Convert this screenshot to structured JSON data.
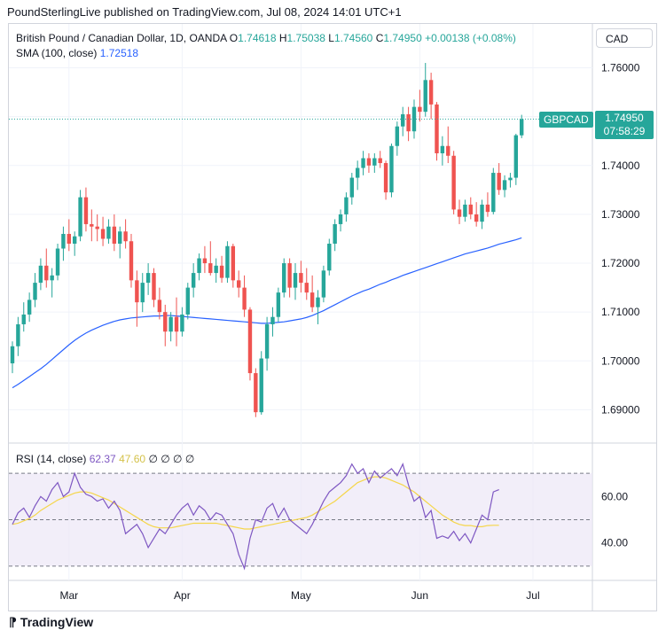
{
  "publisher_line": "PoundSterlingLive published on TradingView.com, Jul 08, 2024 14:01 UTC+1",
  "legend": {
    "symbol": "British Pound / Canadian Dollar, 1D, OANDA",
    "open_label": "O",
    "open": "1.74618",
    "high_label": "H",
    "high": "1.75038",
    "low_label": "L",
    "low": "1.74560",
    "close_label": "C",
    "close": "1.74950",
    "change": "+0.00138 (+0.08%)"
  },
  "sma_legend": {
    "label": "SMA (100, close)",
    "value": "1.72518"
  },
  "rsi_legend": {
    "label": "RSI (14, close)",
    "value": "62.37",
    "ma_value": "47.60",
    "extras": "∅ ∅ ∅ ∅"
  },
  "currency_button": "CAD",
  "symbol_tag": "GBPCAD",
  "last_price": "1.74950",
  "countdown": "07:58:29",
  "brand": "TradingView",
  "colors": {
    "up": "#26a69a",
    "down": "#ef5350",
    "sma": "#2962ff",
    "rsi": "#7e57c2",
    "rsi_ma": "#f5d64a",
    "rsi_band": "#ede7f6"
  },
  "chart_data": [
    {
      "type": "candlestick",
      "title": "British Pound / Canadian Dollar, 1D, OANDA",
      "ylim": [
        1.685,
        1.763
      ],
      "yticks": [
        "1.76000",
        "1.75000",
        "1.74000",
        "1.73000",
        "1.72000",
        "1.71000",
        "1.70000",
        "1.69000"
      ],
      "ytick_values": [
        1.76,
        1.75,
        1.74,
        1.73,
        1.72,
        1.71,
        1.7,
        1.69
      ],
      "xticks": [
        "Mar",
        "Apr",
        "May",
        "Jun",
        "Jul"
      ],
      "xtick_index": [
        10,
        30,
        51,
        72,
        92
      ],
      "grid": true,
      "series": [
        {
          "name": "GBPCAD",
          "ohlc": [
            [
              1.6995,
              1.704,
              1.6975,
              1.703
            ],
            [
              1.703,
              1.709,
              1.701,
              1.7075
            ],
            [
              1.7075,
              1.712,
              1.706,
              1.7095
            ],
            [
              1.7095,
              1.714,
              1.708,
              1.7125
            ],
            [
              1.7125,
              1.718,
              1.711,
              1.716
            ],
            [
              1.716,
              1.721,
              1.7145,
              1.7195
            ],
            [
              1.7195,
              1.723,
              1.715,
              1.7165
            ],
            [
              1.7165,
              1.719,
              1.713,
              1.7175
            ],
            [
              1.7175,
              1.724,
              1.7165,
              1.723
            ],
            [
              1.723,
              1.7275,
              1.7205,
              1.726
            ],
            [
              1.726,
              1.729,
              1.7225,
              1.724
            ],
            [
              1.724,
              1.7265,
              1.7215,
              1.7255
            ],
            [
              1.7255,
              1.735,
              1.7245,
              1.7335
            ],
            [
              1.7335,
              1.7355,
              1.7265,
              1.728
            ],
            [
              1.728,
              1.731,
              1.7245,
              1.7275
            ],
            [
              1.7275,
              1.73,
              1.7245,
              1.727
            ],
            [
              1.727,
              1.7295,
              1.7235,
              1.725
            ],
            [
              1.725,
              1.729,
              1.724,
              1.7275
            ],
            [
              1.7275,
              1.73,
              1.7225,
              1.724
            ],
            [
              1.724,
              1.7275,
              1.721,
              1.7265
            ],
            [
              1.7265,
              1.729,
              1.723,
              1.7245
            ],
            [
              1.7245,
              1.726,
              1.715,
              1.7165
            ],
            [
              1.7165,
              1.7185,
              1.707,
              1.712
            ],
            [
              1.712,
              1.718,
              1.71,
              1.716
            ],
            [
              1.716,
              1.72,
              1.7135,
              1.718
            ],
            [
              1.718,
              1.719,
              1.711,
              1.7125
            ],
            [
              1.7125,
              1.715,
              1.7085,
              1.71
            ],
            [
              1.71,
              1.7115,
              1.703,
              1.706
            ],
            [
              1.706,
              1.71,
              1.704,
              1.709
            ],
            [
              1.709,
              1.713,
              1.703,
              1.706
            ],
            [
              1.706,
              1.711,
              1.705,
              1.7095
            ],
            [
              1.7095,
              1.716,
              1.7085,
              1.715
            ],
            [
              1.715,
              1.72,
              1.713,
              1.718
            ],
            [
              1.718,
              1.722,
              1.7165,
              1.721
            ],
            [
              1.721,
              1.7235,
              1.718,
              1.72
            ],
            [
              1.72,
              1.7245,
              1.7175,
              1.718
            ],
            [
              1.718,
              1.721,
              1.716,
              1.7195
            ],
            [
              1.7195,
              1.7215,
              1.716,
              1.717
            ],
            [
              1.717,
              1.7245,
              1.716,
              1.7235
            ],
            [
              1.7235,
              1.724,
              1.715,
              1.7165
            ],
            [
              1.7165,
              1.7185,
              1.713,
              1.715
            ],
            [
              1.715,
              1.7175,
              1.709,
              1.7105
            ],
            [
              1.7105,
              1.711,
              1.696,
              1.6975
            ],
            [
              1.6975,
              1.6985,
              1.6885,
              1.6895
            ],
            [
              1.6895,
              1.702,
              1.689,
              1.7005
            ],
            [
              1.7005,
              1.709,
              1.698,
              1.7075
            ],
            [
              1.7075,
              1.711,
              1.705,
              1.709
            ],
            [
              1.709,
              1.715,
              1.708,
              1.714
            ],
            [
              1.714,
              1.721,
              1.713,
              1.72
            ],
            [
              1.72,
              1.721,
              1.713,
              1.715
            ],
            [
              1.715,
              1.72,
              1.7125,
              1.718
            ],
            [
              1.718,
              1.7205,
              1.714,
              1.716
            ],
            [
              1.716,
              1.719,
              1.7125,
              1.714
            ],
            [
              1.714,
              1.7175,
              1.71,
              1.711
            ],
            [
              1.711,
              1.7145,
              1.7075,
              1.713
            ],
            [
              1.713,
              1.7195,
              1.712,
              1.7185
            ],
            [
              1.7185,
              1.725,
              1.7175,
              1.724
            ],
            [
              1.724,
              1.729,
              1.7225,
              1.728
            ],
            [
              1.728,
              1.731,
              1.7265,
              1.73
            ],
            [
              1.73,
              1.7345,
              1.7285,
              1.7335
            ],
            [
              1.7335,
              1.7385,
              1.732,
              1.7375
            ],
            [
              1.7375,
              1.741,
              1.735,
              1.7395
            ],
            [
              1.7395,
              1.743,
              1.738,
              1.7415
            ],
            [
              1.7415,
              1.7425,
              1.7385,
              1.74
            ],
            [
              1.74,
              1.7425,
              1.7385,
              1.7415
            ],
            [
              1.7415,
              1.743,
              1.7395,
              1.7405
            ],
            [
              1.7405,
              1.741,
              1.733,
              1.7345
            ],
            [
              1.7345,
              1.7445,
              1.7335,
              1.744
            ],
            [
              1.744,
              1.749,
              1.742,
              1.748
            ],
            [
              1.748,
              1.752,
              1.746,
              1.7505
            ],
            [
              1.7505,
              1.752,
              1.745,
              1.747
            ],
            [
              1.747,
              1.7535,
              1.7455,
              1.752
            ],
            [
              1.752,
              1.7555,
              1.749,
              1.751
            ],
            [
              1.751,
              1.761,
              1.75,
              1.7575
            ],
            [
              1.7575,
              1.759,
              1.7495,
              1.7525
            ],
            [
              1.7525,
              1.753,
              1.741,
              1.7425
            ],
            [
              1.7425,
              1.746,
              1.74,
              1.744
            ],
            [
              1.744,
              1.748,
              1.7405,
              1.742
            ],
            [
              1.742,
              1.743,
              1.73,
              1.731
            ],
            [
              1.731,
              1.733,
              1.728,
              1.7295
            ],
            [
              1.7295,
              1.733,
              1.7285,
              1.732
            ],
            [
              1.732,
              1.7335,
              1.729,
              1.73
            ],
            [
              1.73,
              1.7325,
              1.7275,
              1.7285
            ],
            [
              1.7285,
              1.733,
              1.727,
              1.732
            ],
            [
              1.732,
              1.7345,
              1.7295,
              1.7305
            ],
            [
              1.7305,
              1.7395,
              1.73,
              1.7385
            ],
            [
              1.7385,
              1.7405,
              1.734,
              1.735
            ],
            [
              1.735,
              1.738,
              1.7335,
              1.737
            ],
            [
              1.737,
              1.7385,
              1.7355,
              1.7375
            ],
            [
              1.7375,
              1.7465,
              1.736,
              1.7462
            ],
            [
              1.74618,
              1.75038,
              1.7456,
              1.7495
            ]
          ]
        },
        {
          "name": "SMA (100, close)",
          "values": [
            1.6945,
            1.6952,
            1.696,
            1.6968,
            1.6976,
            1.6984,
            1.6993,
            1.7003,
            1.7013,
            1.7023,
            1.7033,
            1.7042,
            1.705,
            1.7057,
            1.7063,
            1.7068,
            1.7073,
            1.7077,
            1.7081,
            1.7084,
            1.7086,
            1.7088,
            1.7089,
            1.709,
            1.7091,
            1.7092,
            1.7092,
            1.7093,
            1.7093,
            1.7092,
            1.7091,
            1.709,
            1.7089,
            1.7088,
            1.7087,
            1.7086,
            1.7085,
            1.7084,
            1.7083,
            1.7082,
            1.7081,
            1.708,
            1.7079,
            1.7078,
            1.7077,
            1.7077,
            1.7078,
            1.7079,
            1.708,
            1.7082,
            1.7084,
            1.7086,
            1.7089,
            1.7093,
            1.7098,
            1.7103,
            1.7109,
            1.7115,
            1.7121,
            1.7127,
            1.7133,
            1.7138,
            1.7143,
            1.7147,
            1.7152,
            1.7157,
            1.7161,
            1.7166,
            1.717,
            1.7175,
            1.7179,
            1.7183,
            1.7187,
            1.7191,
            1.7195,
            1.7199,
            1.7203,
            1.7207,
            1.7211,
            1.7215,
            1.7219,
            1.7222,
            1.7225,
            1.7228,
            1.7231,
            1.7235,
            1.7239,
            1.7242,
            1.7245,
            1.7248,
            1.7252
          ]
        }
      ]
    },
    {
      "type": "line",
      "title": "RSI (14, close)",
      "ylim": [
        25,
        80
      ],
      "yticks": [
        "60.00",
        "40.00"
      ],
      "ytick_values": [
        60,
        40
      ],
      "band": [
        30,
        70
      ],
      "midline": 50,
      "series": [
        {
          "name": "RSI (14, close)",
          "values": [
            48,
            53,
            55,
            51,
            56,
            60,
            58,
            63,
            66,
            60,
            62,
            70,
            64,
            61,
            60,
            58,
            59,
            55,
            58,
            54,
            44,
            46,
            48,
            44,
            38,
            42,
            46,
            44,
            48,
            52,
            55,
            57,
            52,
            56,
            54,
            50,
            53,
            52,
            48,
            44,
            35,
            29,
            42,
            50,
            49,
            55,
            57,
            51,
            55,
            50,
            48,
            46,
            44,
            48,
            53,
            58,
            62,
            64,
            66,
            69,
            74,
            70,
            72,
            66,
            71,
            68,
            70,
            72,
            69,
            74,
            65,
            58,
            60,
            51,
            54,
            42,
            43,
            42,
            45,
            41,
            44,
            40,
            46,
            52,
            50,
            62,
            63
          ]
        },
        {
          "name": "RSI MA",
          "values": [
            48,
            48.5,
            49.5,
            50.5,
            52,
            54,
            55.5,
            57,
            58.5,
            59.5,
            60.5,
            61.5,
            62,
            62,
            61.5,
            60.5,
            59.5,
            58.5,
            57,
            55.5,
            54,
            52.5,
            51,
            49.5,
            48,
            47,
            46.5,
            46.5,
            46.5,
            47,
            47.5,
            48,
            48.5,
            48.5,
            48.5,
            48.5,
            48.5,
            48,
            47.5,
            47,
            46.5,
            46,
            46,
            46.5,
            47,
            47.5,
            48,
            48.5,
            49,
            49.5,
            50,
            50.5,
            51,
            52,
            53.5,
            55,
            56.5,
            58,
            60,
            62,
            64,
            66,
            67,
            68,
            68.5,
            68.5,
            68,
            67,
            66,
            65,
            63.5,
            62,
            60,
            58,
            56,
            54,
            52,
            50.5,
            49,
            48,
            47.5,
            47.5,
            47,
            47,
            47.5,
            47.6,
            47.6
          ]
        }
      ]
    }
  ]
}
